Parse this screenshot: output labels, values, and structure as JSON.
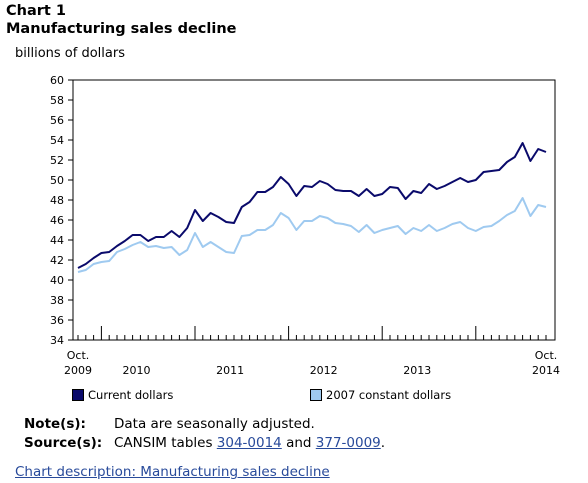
{
  "header": {
    "chart_number": "Chart 1",
    "title": "Manufacturing sales decline"
  },
  "notes": {
    "note_label": "Note(s):",
    "note_text": "Data are seasonally adjusted.",
    "source_label": "Source(s):",
    "source_prefix": "CANSIM tables ",
    "source_link1": "304-0014",
    "source_and": " and ",
    "source_link2": "377-0009",
    "source_suffix": "."
  },
  "chart_description_link": "Chart description: Manufacturing sales decline",
  "colors": {
    "current": "#0a0a6b",
    "constant": "#9fcaf0"
  },
  "chart_data": {
    "type": "line",
    "title": "Manufacturing sales decline",
    "ylabel": "billions of dollars",
    "xlabel": "",
    "ylim": [
      34,
      60
    ],
    "yticks": [
      34,
      36,
      38,
      40,
      42,
      44,
      46,
      48,
      50,
      52,
      54,
      56,
      58,
      60
    ],
    "x_start": "Oct. 2009",
    "x_end": "Oct. 2014",
    "x_tick_labels": [
      {
        "index": 0,
        "line1": "Oct.",
        "line2": "2009"
      },
      {
        "index": 7.5,
        "line1": "",
        "line2": "2010"
      },
      {
        "index": 19.5,
        "line1": "",
        "line2": "2011"
      },
      {
        "index": 31.5,
        "line1": "",
        "line2": "2012"
      },
      {
        "index": 43.5,
        "line1": "",
        "line2": "2013"
      },
      {
        "index": 60,
        "line1": "Oct.",
        "line2": "2014"
      }
    ],
    "major_ticks": [
      3,
      15,
      27,
      39,
      51
    ],
    "grid": false,
    "legend_position": "bottom",
    "series": [
      {
        "name": "Current dollars",
        "values": [
          41.2,
          41.6,
          42.2,
          42.7,
          42.8,
          43.4,
          43.9,
          44.5,
          44.5,
          43.9,
          44.3,
          44.3,
          44.9,
          44.3,
          45.2,
          47.0,
          45.9,
          46.7,
          46.3,
          45.8,
          45.7,
          47.3,
          47.8,
          48.8,
          48.8,
          49.3,
          50.3,
          49.6,
          48.4,
          49.4,
          49.3,
          49.9,
          49.6,
          49.0,
          48.9,
          48.9,
          48.4,
          49.1,
          48.4,
          48.6,
          49.3,
          49.2,
          48.1,
          48.9,
          48.7,
          49.6,
          49.1,
          49.4,
          49.8,
          50.2,
          49.8,
          50.0,
          50.8,
          50.9,
          51.0,
          51.8,
          52.3,
          53.7,
          51.9,
          53.1,
          52.8
        ]
      },
      {
        "name": "2007 constant dollars",
        "values": [
          40.8,
          41.0,
          41.6,
          41.8,
          41.9,
          42.8,
          43.1,
          43.5,
          43.8,
          43.3,
          43.4,
          43.2,
          43.3,
          42.5,
          43.0,
          44.7,
          43.3,
          43.8,
          43.3,
          42.8,
          42.7,
          44.4,
          44.5,
          45.0,
          45.0,
          45.5,
          46.7,
          46.2,
          45.0,
          45.9,
          45.9,
          46.4,
          46.2,
          45.7,
          45.6,
          45.4,
          44.8,
          45.5,
          44.7,
          45.0,
          45.2,
          45.4,
          44.6,
          45.2,
          44.9,
          45.5,
          44.9,
          45.2,
          45.6,
          45.8,
          45.2,
          44.9,
          45.3,
          45.4,
          45.9,
          46.5,
          46.9,
          48.2,
          46.4,
          47.5,
          47.3
        ]
      }
    ]
  }
}
